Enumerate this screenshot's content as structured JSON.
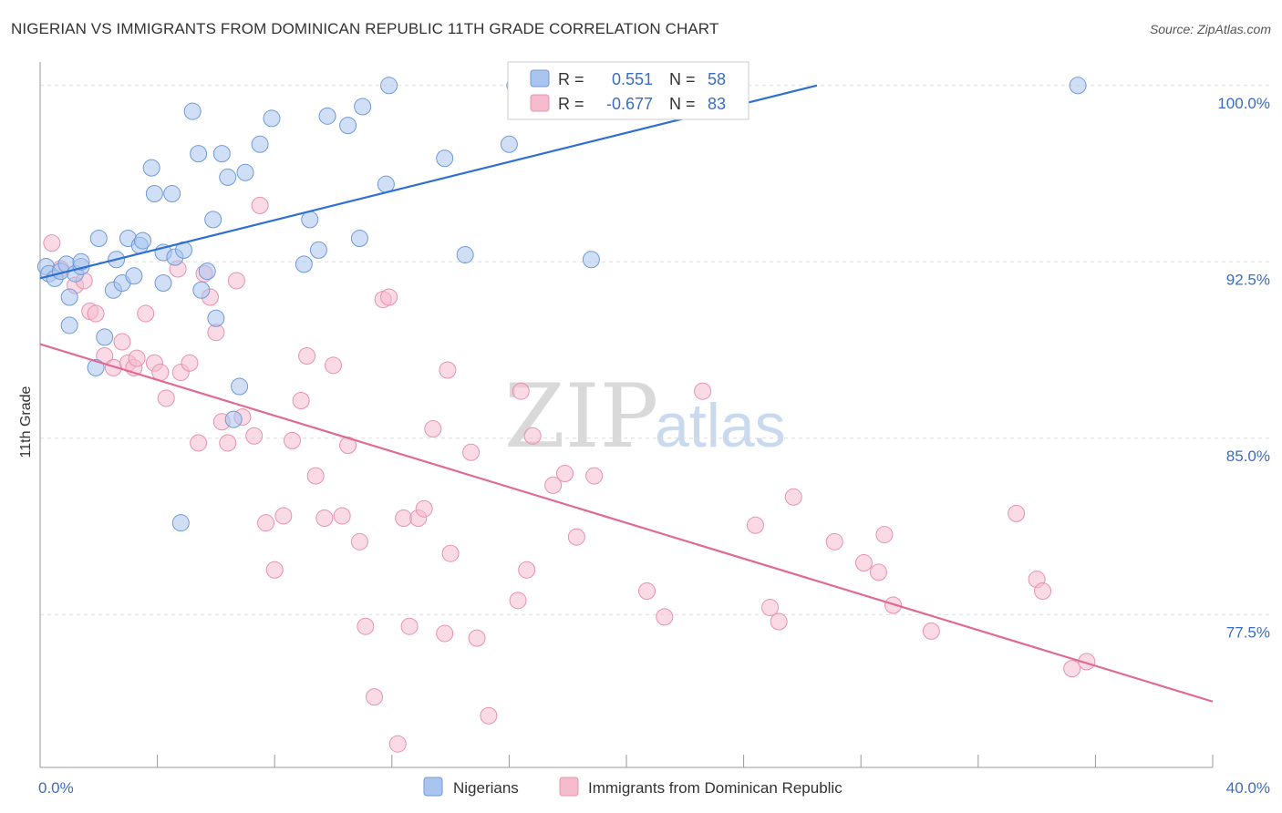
{
  "title": "NIGERIAN VS IMMIGRANTS FROM DOMINICAN REPUBLIC 11TH GRADE CORRELATION CHART",
  "source": "Source: ZipAtlas.com",
  "watermark": {
    "zip": "ZIP",
    "atlas": "atlas"
  },
  "colors": {
    "blue_fill": "#a9c4ee",
    "blue_stroke": "#6f9ad8",
    "blue_line": "#2f6fd0",
    "pink_fill": "#f6bccd",
    "pink_stroke": "#e892ad",
    "pink_line": "#e06a95",
    "axis_text": "#3b6cc4",
    "grid": "#dddddd"
  },
  "stats": [
    {
      "r_label": "R =",
      "r_value": "0.551",
      "n_label": "N =",
      "n_value": "58",
      "color": "blue"
    },
    {
      "r_label": "R =",
      "r_value": "-0.677",
      "n_label": "N =",
      "n_value": "83",
      "color": "pink"
    }
  ],
  "chart_data": {
    "type": "scatter",
    "title": "NIGERIAN VS IMMIGRANTS FROM DOMINICAN REPUBLIC 11TH GRADE CORRELATION CHART",
    "xlabel": "",
    "ylabel": "11th Grade",
    "xlim": [
      0,
      40
    ],
    "ylim": [
      71,
      101
    ],
    "x_tick_labels": [
      "0.0%",
      "40.0%"
    ],
    "y_ticks": [
      77.5,
      85.0,
      92.5,
      100.0
    ],
    "y_tick_labels": [
      "77.5%",
      "85.0%",
      "92.5%",
      "100.0%"
    ],
    "grid": true,
    "legend_position": "bottom",
    "series": [
      {
        "name": "Nigerians",
        "color": "blue",
        "trend": {
          "x": [
            0,
            26.5
          ],
          "y": [
            91.8,
            100.0
          ]
        },
        "points": [
          [
            0.2,
            92.3
          ],
          [
            0.3,
            92.0
          ],
          [
            0.5,
            91.8
          ],
          [
            0.7,
            92.1
          ],
          [
            0.9,
            92.4
          ],
          [
            1.0,
            91.0
          ],
          [
            1.0,
            89.8
          ],
          [
            1.2,
            92.0
          ],
          [
            1.4,
            92.3
          ],
          [
            1.4,
            92.5
          ],
          [
            1.9,
            88.0
          ],
          [
            2.0,
            93.5
          ],
          [
            2.2,
            89.3
          ],
          [
            2.5,
            91.3
          ],
          [
            2.6,
            92.6
          ],
          [
            2.8,
            91.6
          ],
          [
            3.0,
            93.5
          ],
          [
            3.2,
            91.9
          ],
          [
            3.4,
            93.2
          ],
          [
            3.5,
            93.4
          ],
          [
            3.8,
            96.5
          ],
          [
            3.9,
            95.4
          ],
          [
            4.2,
            91.6
          ],
          [
            4.2,
            92.9
          ],
          [
            4.5,
            95.4
          ],
          [
            4.6,
            92.7
          ],
          [
            4.8,
            81.4
          ],
          [
            4.9,
            93.0
          ],
          [
            5.2,
            98.9
          ],
          [
            5.4,
            97.1
          ],
          [
            5.5,
            91.3
          ],
          [
            5.7,
            92.1
          ],
          [
            5.9,
            94.3
          ],
          [
            6.0,
            90.1
          ],
          [
            6.2,
            97.1
          ],
          [
            6.4,
            96.1
          ],
          [
            6.6,
            85.8
          ],
          [
            6.8,
            87.2
          ],
          [
            7.0,
            96.3
          ],
          [
            7.5,
            97.5
          ],
          [
            7.9,
            98.6
          ],
          [
            9.0,
            92.4
          ],
          [
            9.2,
            94.3
          ],
          [
            9.5,
            93.0
          ],
          [
            9.8,
            98.7
          ],
          [
            10.5,
            98.3
          ],
          [
            10.9,
            93.5
          ],
          [
            11.0,
            99.1
          ],
          [
            11.8,
            95.8
          ],
          [
            11.9,
            100.0
          ],
          [
            13.8,
            96.9
          ],
          [
            14.5,
            92.8
          ],
          [
            16.0,
            97.5
          ],
          [
            16.2,
            100.0
          ],
          [
            17.0,
            100.0
          ],
          [
            18.8,
            92.6
          ],
          [
            20.0,
            100.0
          ],
          [
            35.4,
            100.0
          ]
        ]
      },
      {
        "name": "Immigrants from Dominican Republic",
        "color": "pink",
        "trend": {
          "x": [
            0,
            40
          ],
          "y": [
            89.0,
            73.8
          ]
        },
        "points": [
          [
            0.4,
            93.3
          ],
          [
            0.7,
            92.2
          ],
          [
            1.2,
            91.5
          ],
          [
            1.5,
            91.7
          ],
          [
            1.7,
            90.4
          ],
          [
            1.9,
            90.3
          ],
          [
            2.2,
            88.5
          ],
          [
            2.5,
            88.0
          ],
          [
            2.8,
            89.1
          ],
          [
            3.0,
            88.2
          ],
          [
            3.2,
            88.0
          ],
          [
            3.3,
            88.4
          ],
          [
            3.6,
            90.3
          ],
          [
            3.9,
            88.2
          ],
          [
            4.1,
            87.8
          ],
          [
            4.3,
            86.7
          ],
          [
            4.7,
            92.2
          ],
          [
            4.8,
            87.8
          ],
          [
            5.1,
            88.2
          ],
          [
            5.4,
            84.8
          ],
          [
            5.6,
            92.0
          ],
          [
            5.8,
            91.0
          ],
          [
            6.0,
            89.5
          ],
          [
            6.2,
            85.7
          ],
          [
            6.4,
            84.8
          ],
          [
            6.7,
            91.7
          ],
          [
            6.9,
            85.9
          ],
          [
            7.3,
            85.1
          ],
          [
            7.5,
            94.9
          ],
          [
            7.7,
            81.4
          ],
          [
            8.0,
            79.4
          ],
          [
            8.3,
            81.7
          ],
          [
            8.6,
            84.9
          ],
          [
            8.9,
            86.6
          ],
          [
            9.1,
            88.5
          ],
          [
            9.4,
            83.4
          ],
          [
            9.7,
            81.6
          ],
          [
            10.0,
            88.1
          ],
          [
            10.3,
            81.7
          ],
          [
            10.5,
            84.7
          ],
          [
            10.9,
            80.6
          ],
          [
            11.1,
            77.0
          ],
          [
            11.4,
            74.0
          ],
          [
            11.7,
            90.9
          ],
          [
            11.9,
            91.0
          ],
          [
            12.2,
            72.0
          ],
          [
            12.4,
            81.6
          ],
          [
            12.6,
            77.0
          ],
          [
            12.9,
            81.6
          ],
          [
            13.1,
            82.0
          ],
          [
            13.4,
            85.4
          ],
          [
            13.8,
            76.7
          ],
          [
            13.9,
            87.9
          ],
          [
            14.0,
            80.1
          ],
          [
            14.7,
            84.4
          ],
          [
            14.9,
            76.5
          ],
          [
            15.3,
            73.2
          ],
          [
            16.3,
            78.1
          ],
          [
            16.4,
            87.0
          ],
          [
            16.6,
            79.4
          ],
          [
            16.8,
            85.1
          ],
          [
            17.5,
            83.0
          ],
          [
            17.9,
            83.5
          ],
          [
            18.3,
            80.8
          ],
          [
            18.9,
            83.4
          ],
          [
            20.7,
            78.5
          ],
          [
            21.3,
            77.4
          ],
          [
            22.6,
            87.0
          ],
          [
            24.4,
            81.3
          ],
          [
            24.9,
            77.8
          ],
          [
            25.2,
            77.2
          ],
          [
            25.7,
            82.5
          ],
          [
            27.1,
            80.6
          ],
          [
            28.1,
            79.7
          ],
          [
            28.6,
            79.3
          ],
          [
            28.8,
            80.9
          ],
          [
            29.1,
            77.9
          ],
          [
            30.4,
            76.8
          ],
          [
            33.3,
            81.8
          ],
          [
            34.0,
            79.0
          ],
          [
            34.2,
            78.5
          ],
          [
            35.2,
            75.2
          ],
          [
            35.7,
            75.5
          ]
        ]
      }
    ]
  },
  "legend": [
    {
      "label": "Nigerians",
      "color": "blue"
    },
    {
      "label": "Immigrants from Dominican Republic",
      "color": "pink"
    }
  ]
}
